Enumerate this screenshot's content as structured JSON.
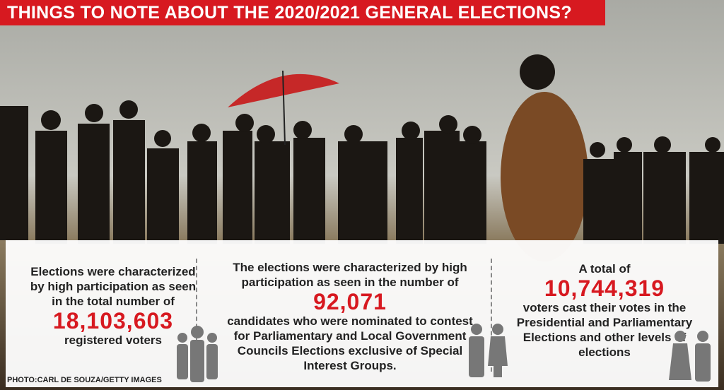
{
  "header": {
    "title": "THINGS TO NOTE ABOUT THE 2020/2021 GENERAL ELECTIONS?"
  },
  "columns": [
    {
      "intro": "Elections were characterized by high participation as seen in the total number of",
      "number": "18,103,603",
      "outro": "registered voters"
    },
    {
      "intro": "The elections were characterized by high participation as seen in the number of",
      "number": "92,071",
      "outro": "candidates who were nominated to contest for Parliamentary and Local Government Councils Elections exclusive of Special Interest Groups."
    },
    {
      "intro": "A total of",
      "number": "10,744,319",
      "outro": "voters cast their votes in the Presidential and Parliamentary Elections and other levels of elections"
    }
  ],
  "photo_credit": "PHOTO:CARL DE SOUZA/GETTY IMAGES"
}
